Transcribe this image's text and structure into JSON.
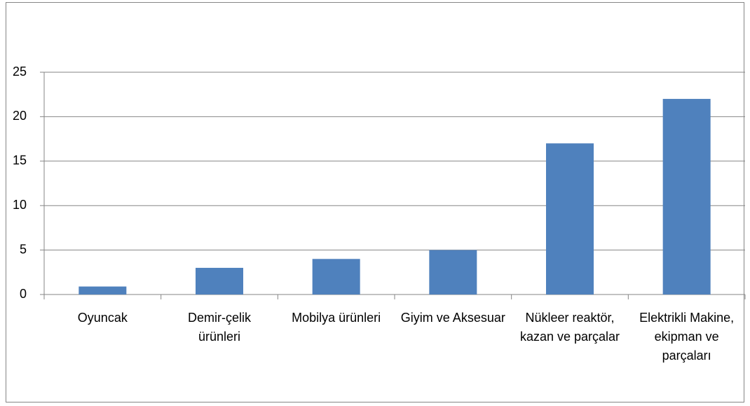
{
  "chart_data": {
    "type": "bar",
    "categories": [
      "Oyuncak",
      "Demir-çelik ürünleri",
      "Mobilya ürünleri",
      "Giyim ve Aksesuar",
      "Nükleer reaktör, kazan ve parçalar",
      "Elektrikli Makine, ekipman ve parçaları"
    ],
    "values": [
      0.9,
      3,
      4,
      5,
      17,
      22
    ],
    "color": "#4f81bd",
    "ylim": [
      0,
      25
    ],
    "yticks": [
      0,
      5,
      10,
      15,
      20,
      25
    ],
    "grid": true
  }
}
